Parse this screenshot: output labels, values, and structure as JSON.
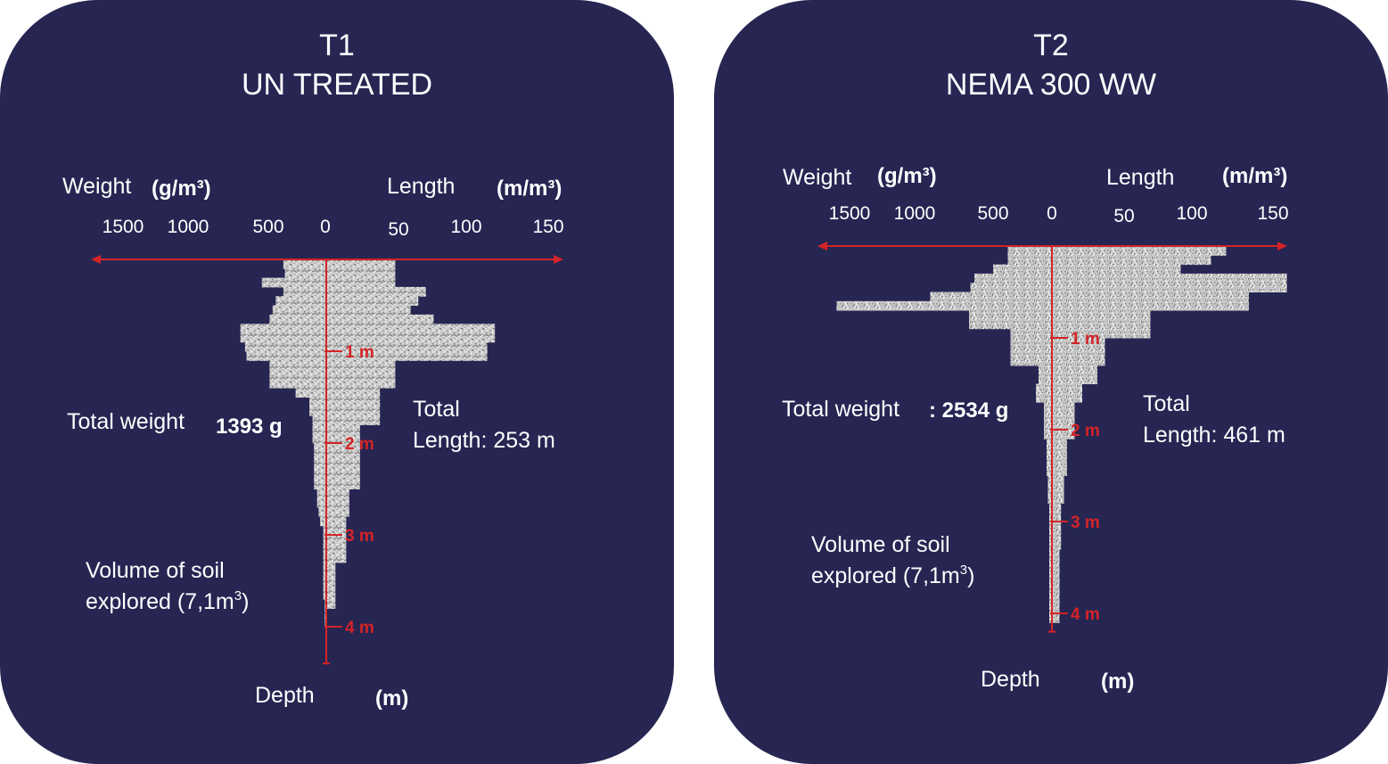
{
  "chart_data": [
    {
      "type": "bar",
      "title": "T1",
      "subtitle": "UN TREATED",
      "weight_label": "Weight",
      "weight_unit": "(g/m³)",
      "length_label": "Length",
      "length_unit": "(m/m³)",
      "weight_ticks": [
        "1500",
        "1000",
        "500",
        "0"
      ],
      "length_ticks": [
        "50",
        "100",
        "150"
      ],
      "depth_label": "Depth",
      "depth_unit": "(m)",
      "depth_ticks": [
        "1 m",
        "2 m",
        "3 m",
        "4 m"
      ],
      "total_weight_label": "Total weight",
      "total_weight_value": "1393 g",
      "total_length_line1": "Total",
      "total_length_line2": "Length: 253 m",
      "volume_line1": "Volume of soil",
      "volume_line2": "explored (7,1m",
      "volume_sup": "3",
      "volume_close": ")",
      "depth_max": 4.4,
      "series": [
        {
          "name": "Weight",
          "depth_start": [
            0.0,
            0.1,
            0.2,
            0.3,
            0.4,
            0.5,
            0.6,
            0.7,
            0.8,
            0.9,
            1.0,
            1.1,
            1.2,
            1.3,
            1.4,
            1.5,
            1.6,
            1.7,
            1.8,
            1.9,
            2.0,
            2.1,
            2.2,
            2.3,
            2.4,
            2.5,
            2.6,
            2.7,
            2.8,
            2.9,
            3.0,
            3.1,
            3.2,
            3.3,
            3.4,
            3.5,
            3.6,
            3.7,
            3.8,
            3.9,
            4.0
          ],
          "values": [
            280,
            270,
            420,
            280,
            330,
            350,
            370,
            560,
            560,
            530,
            520,
            370,
            370,
            370,
            200,
            110,
            110,
            90,
            90,
            90,
            80,
            80,
            80,
            80,
            80,
            60,
            60,
            50,
            40,
            20,
            20,
            20,
            20,
            20,
            20,
            20,
            20,
            10,
            10,
            10,
            0
          ]
        },
        {
          "name": "Length",
          "depth_start": [
            0.0,
            0.1,
            0.2,
            0.3,
            0.4,
            0.5,
            0.6,
            0.7,
            0.8,
            0.9,
            1.0,
            1.1,
            1.2,
            1.3,
            1.4,
            1.5,
            1.6,
            1.7,
            1.8,
            1.9,
            2.0,
            2.1,
            2.2,
            2.3,
            2.4,
            2.5,
            2.6,
            2.7,
            2.8,
            2.9,
            3.0,
            3.1,
            3.2,
            3.3,
            3.4,
            3.5,
            3.6,
            3.7,
            3.8,
            3.9,
            4.0
          ],
          "values": [
            45,
            45,
            45,
            65,
            60,
            55,
            70,
            110,
            110,
            105,
            105,
            45,
            45,
            45,
            35,
            35,
            35,
            35,
            22,
            22,
            22,
            22,
            22,
            22,
            22,
            15,
            15,
            15,
            13,
            13,
            13,
            13,
            13,
            6,
            6,
            6,
            6,
            6,
            0,
            0,
            0
          ]
        }
      ]
    },
    {
      "type": "bar",
      "title": "T2",
      "subtitle": "NEMA 300 WW",
      "weight_label": "Weight",
      "weight_unit": "(g/m³)",
      "length_label": "Length",
      "length_unit": "(m/m³)",
      "weight_ticks": [
        "1500",
        "1000",
        "500",
        "0"
      ],
      "length_ticks": [
        "50",
        "100",
        "150"
      ],
      "depth_label": "Depth",
      "depth_unit": "(m)",
      "depth_ticks": [
        "1 m",
        "2 m",
        "3 m",
        "4 m"
      ],
      "total_weight_label": "Total weight",
      "total_weight_value": ": 2534 g",
      "total_length_line1": "Total",
      "total_length_line2": "Length: 461 m",
      "volume_line1": "Volume of soil",
      "volume_line2": "explored (7,1m",
      "volume_sup": "3",
      "volume_close": ")",
      "depth_max": 4.2,
      "series": [
        {
          "name": "Weight",
          "depth_start": [
            0.0,
            0.1,
            0.2,
            0.3,
            0.4,
            0.5,
            0.6,
            0.7,
            0.8,
            0.9,
            1.0,
            1.1,
            1.2,
            1.3,
            1.4,
            1.5,
            1.6,
            1.7,
            1.8,
            1.9,
            2.0,
            2.1,
            2.2,
            2.3,
            2.4,
            2.5,
            2.6,
            2.7,
            2.8,
            2.9,
            3.0,
            3.1,
            3.2,
            3.3,
            3.4,
            3.5,
            3.6,
            3.7,
            3.8,
            3.9,
            4.0
          ],
          "values": [
            330,
            330,
            440,
            580,
            610,
            910,
            1610,
            620,
            620,
            310,
            310,
            310,
            310,
            100,
            100,
            120,
            120,
            60,
            60,
            60,
            60,
            40,
            40,
            40,
            40,
            30,
            30,
            30,
            20,
            20,
            20,
            20,
            20,
            20,
            20,
            20,
            20,
            20,
            20,
            20,
            20
          ]
        },
        {
          "name": "Length",
          "depth_start": [
            0.0,
            0.1,
            0.2,
            0.3,
            0.4,
            0.5,
            0.6,
            0.7,
            0.8,
            0.9,
            1.0,
            1.1,
            1.2,
            1.3,
            1.4,
            1.5,
            1.6,
            1.7,
            1.8,
            1.9,
            2.0,
            2.1,
            2.2,
            2.3,
            2.4,
            2.5,
            2.6,
            2.7,
            2.8,
            2.9,
            3.0,
            3.1,
            3.2,
            3.3,
            3.4,
            3.5,
            3.6,
            3.7,
            3.8,
            3.9,
            4.0
          ],
          "values": [
            115,
            105,
            85,
            155,
            155,
            130,
            130,
            65,
            65,
            65,
            35,
            35,
            35,
            30,
            30,
            20,
            20,
            15,
            15,
            15,
            15,
            10,
            10,
            10,
            10,
            8,
            8,
            8,
            6,
            6,
            6,
            6,
            6,
            5,
            5,
            5,
            5,
            5,
            5,
            5,
            5
          ]
        }
      ]
    }
  ]
}
